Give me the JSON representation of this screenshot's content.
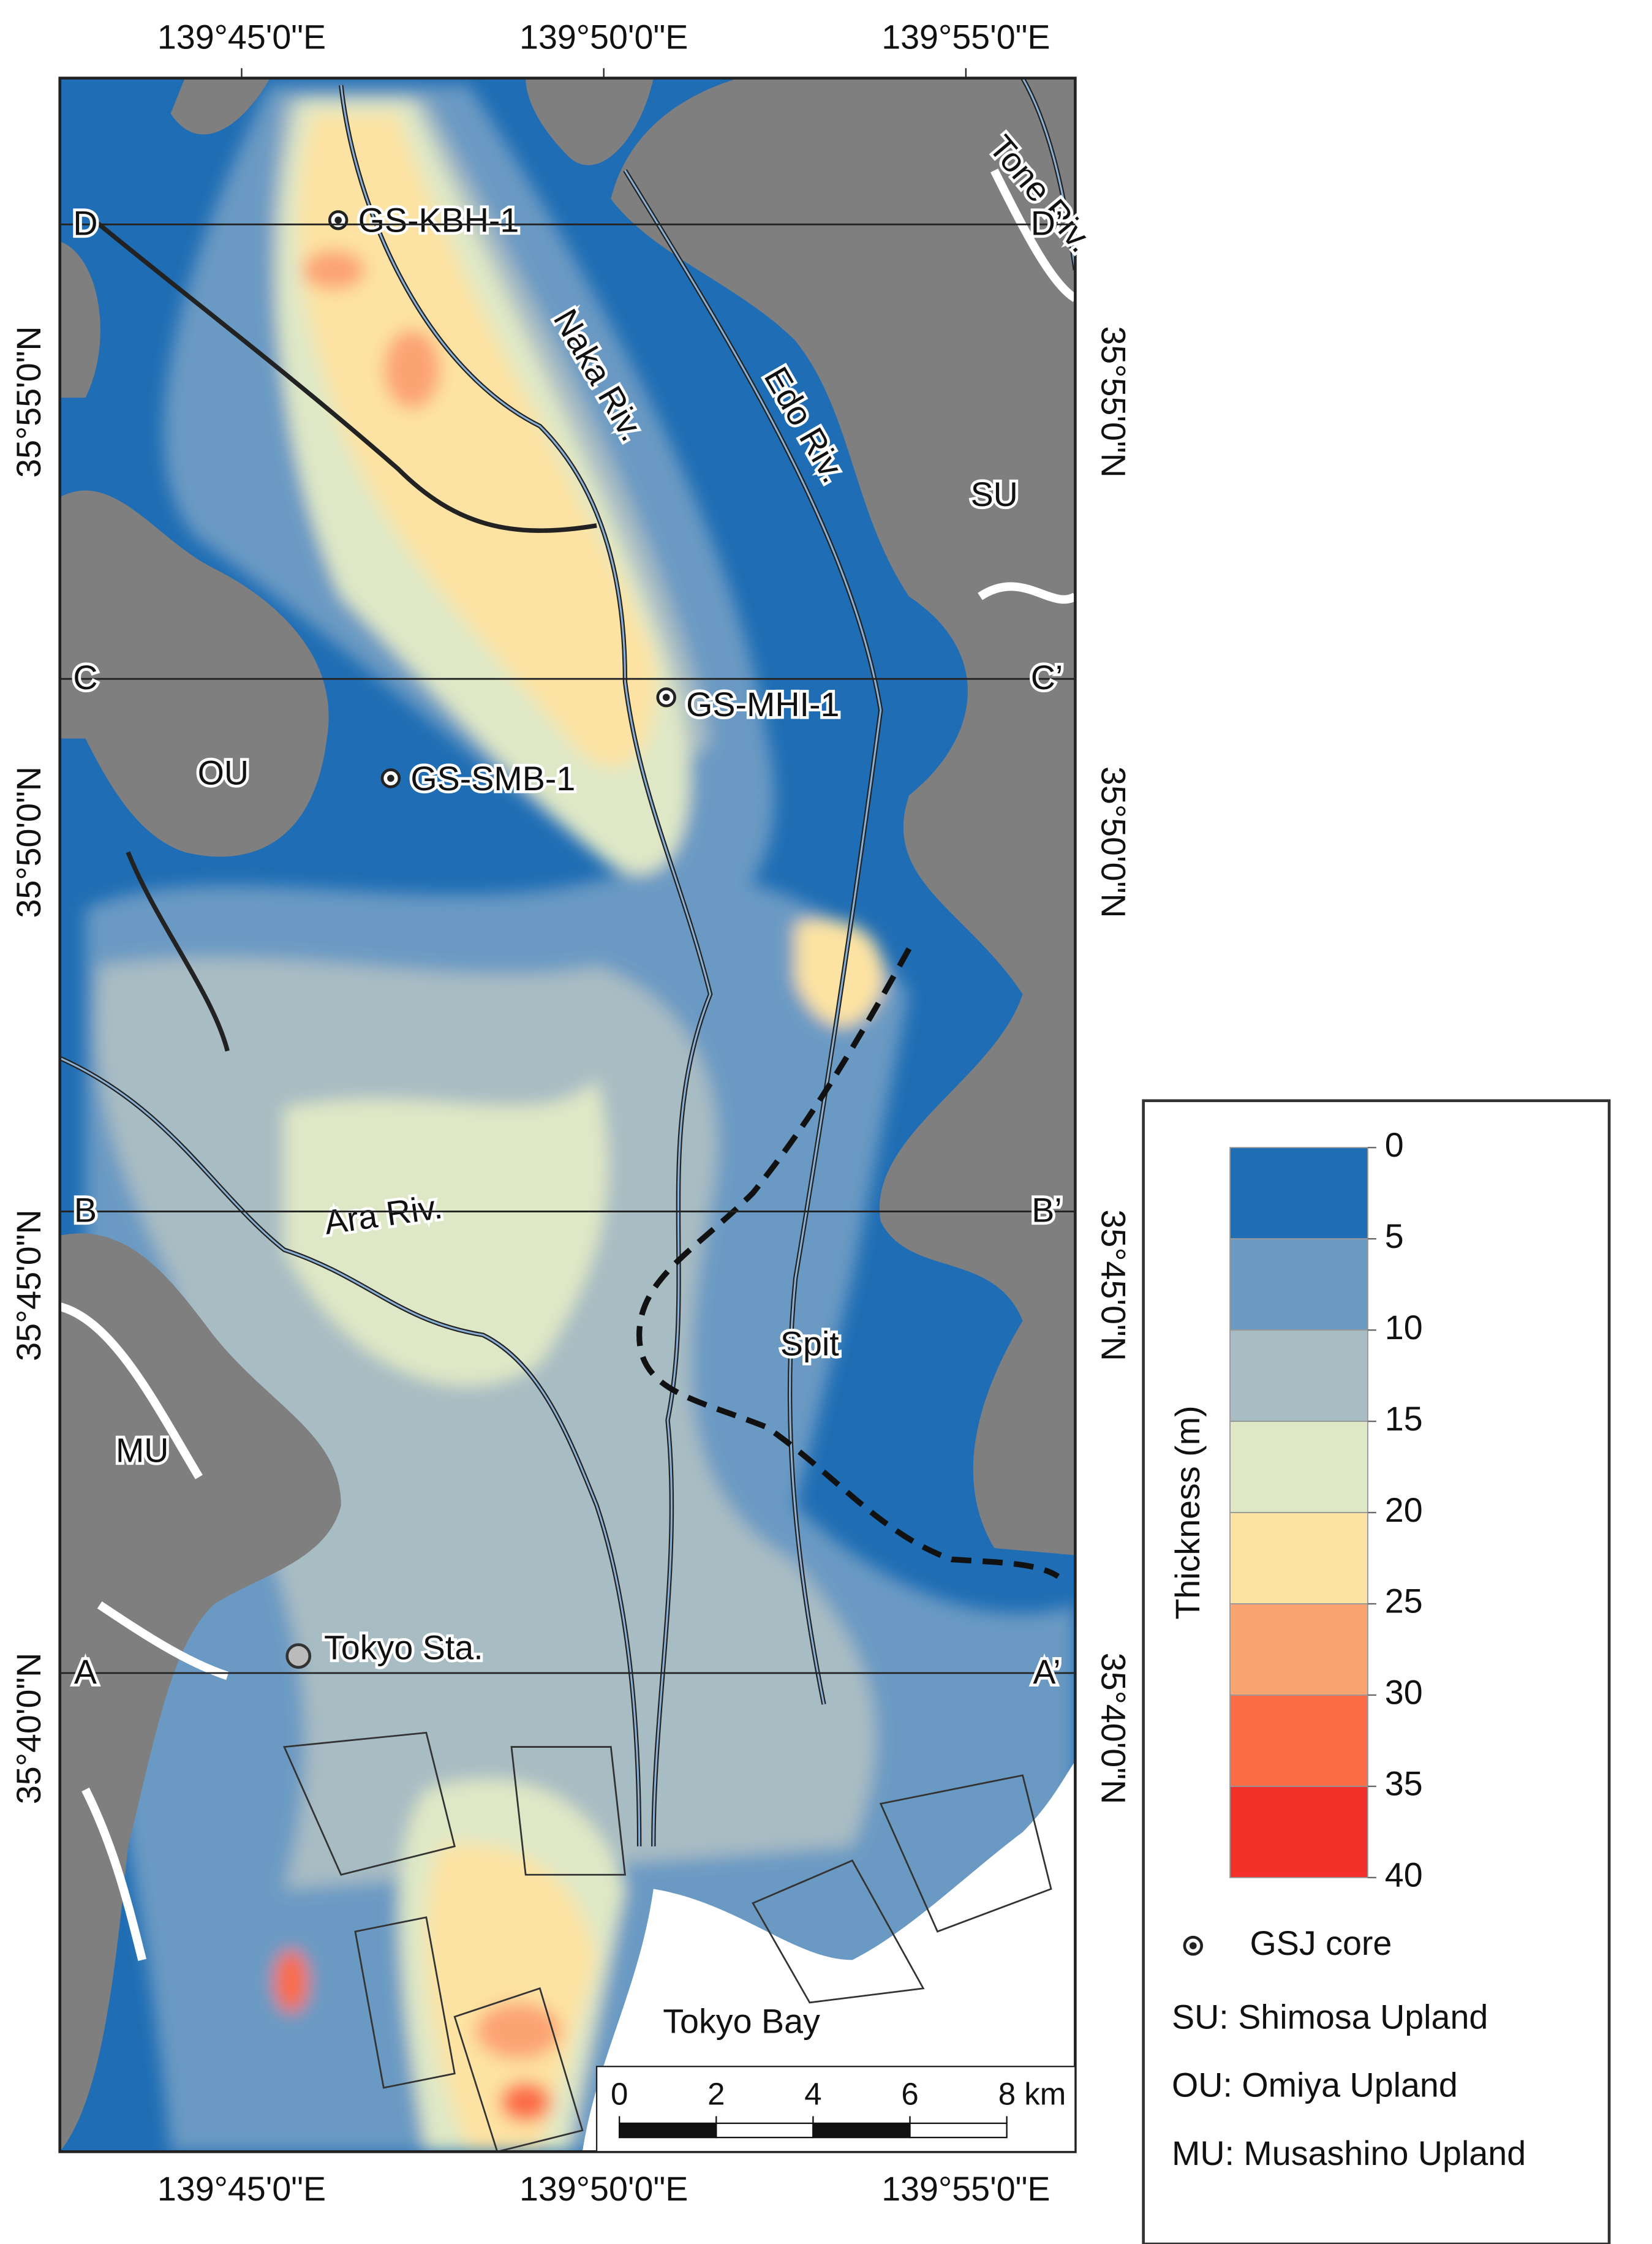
{
  "map": {
    "lon_labels": [
      "139°45'0\"E",
      "139°50'0\"E",
      "139°55'0\"E"
    ],
    "lat_labels": [
      "35°55'0\"N",
      "35°50'0\"N",
      "35°45'0\"N",
      "35°40'0\"N"
    ],
    "sections": [
      {
        "left": "D",
        "right": "D’"
      },
      {
        "left": "C",
        "right": "C’"
      },
      {
        "left": "B",
        "right": "B’"
      },
      {
        "left": "A",
        "right": "A’"
      }
    ],
    "rivers": [
      "Tone Riv.",
      "Naka Riv.",
      "Edo Riv.",
      "Ara Riv."
    ],
    "uplands": [
      "SU",
      "OU",
      "MU"
    ],
    "cores": [
      "GS-KBH-1",
      "GS-MHI-1",
      "GS-SMB-1"
    ],
    "places": [
      "Tokyo Sta.",
      "Spit",
      "Tokyo Bay"
    ],
    "scale_bar": {
      "ticks": [
        0,
        2,
        4,
        6,
        {
          "value": 8,
          "label": "8 km"
        }
      ]
    }
  },
  "legend": {
    "title": "Thickness (m)",
    "bins": [
      0,
      5,
      10,
      15,
      20,
      25,
      30,
      35,
      40
    ],
    "colors": [
      "#1f6db4",
      "#6b9ac3",
      "#a8bcc3",
      "#dfe8c6",
      "#fde3a3",
      "#fca372",
      "#fb6c46",
      "#f3302a"
    ],
    "core": "GSJ core",
    "notes": [
      "SU: Shimosa Upland",
      "OU: Omiya Upland",
      "MU: Musashino Upland"
    ]
  }
}
